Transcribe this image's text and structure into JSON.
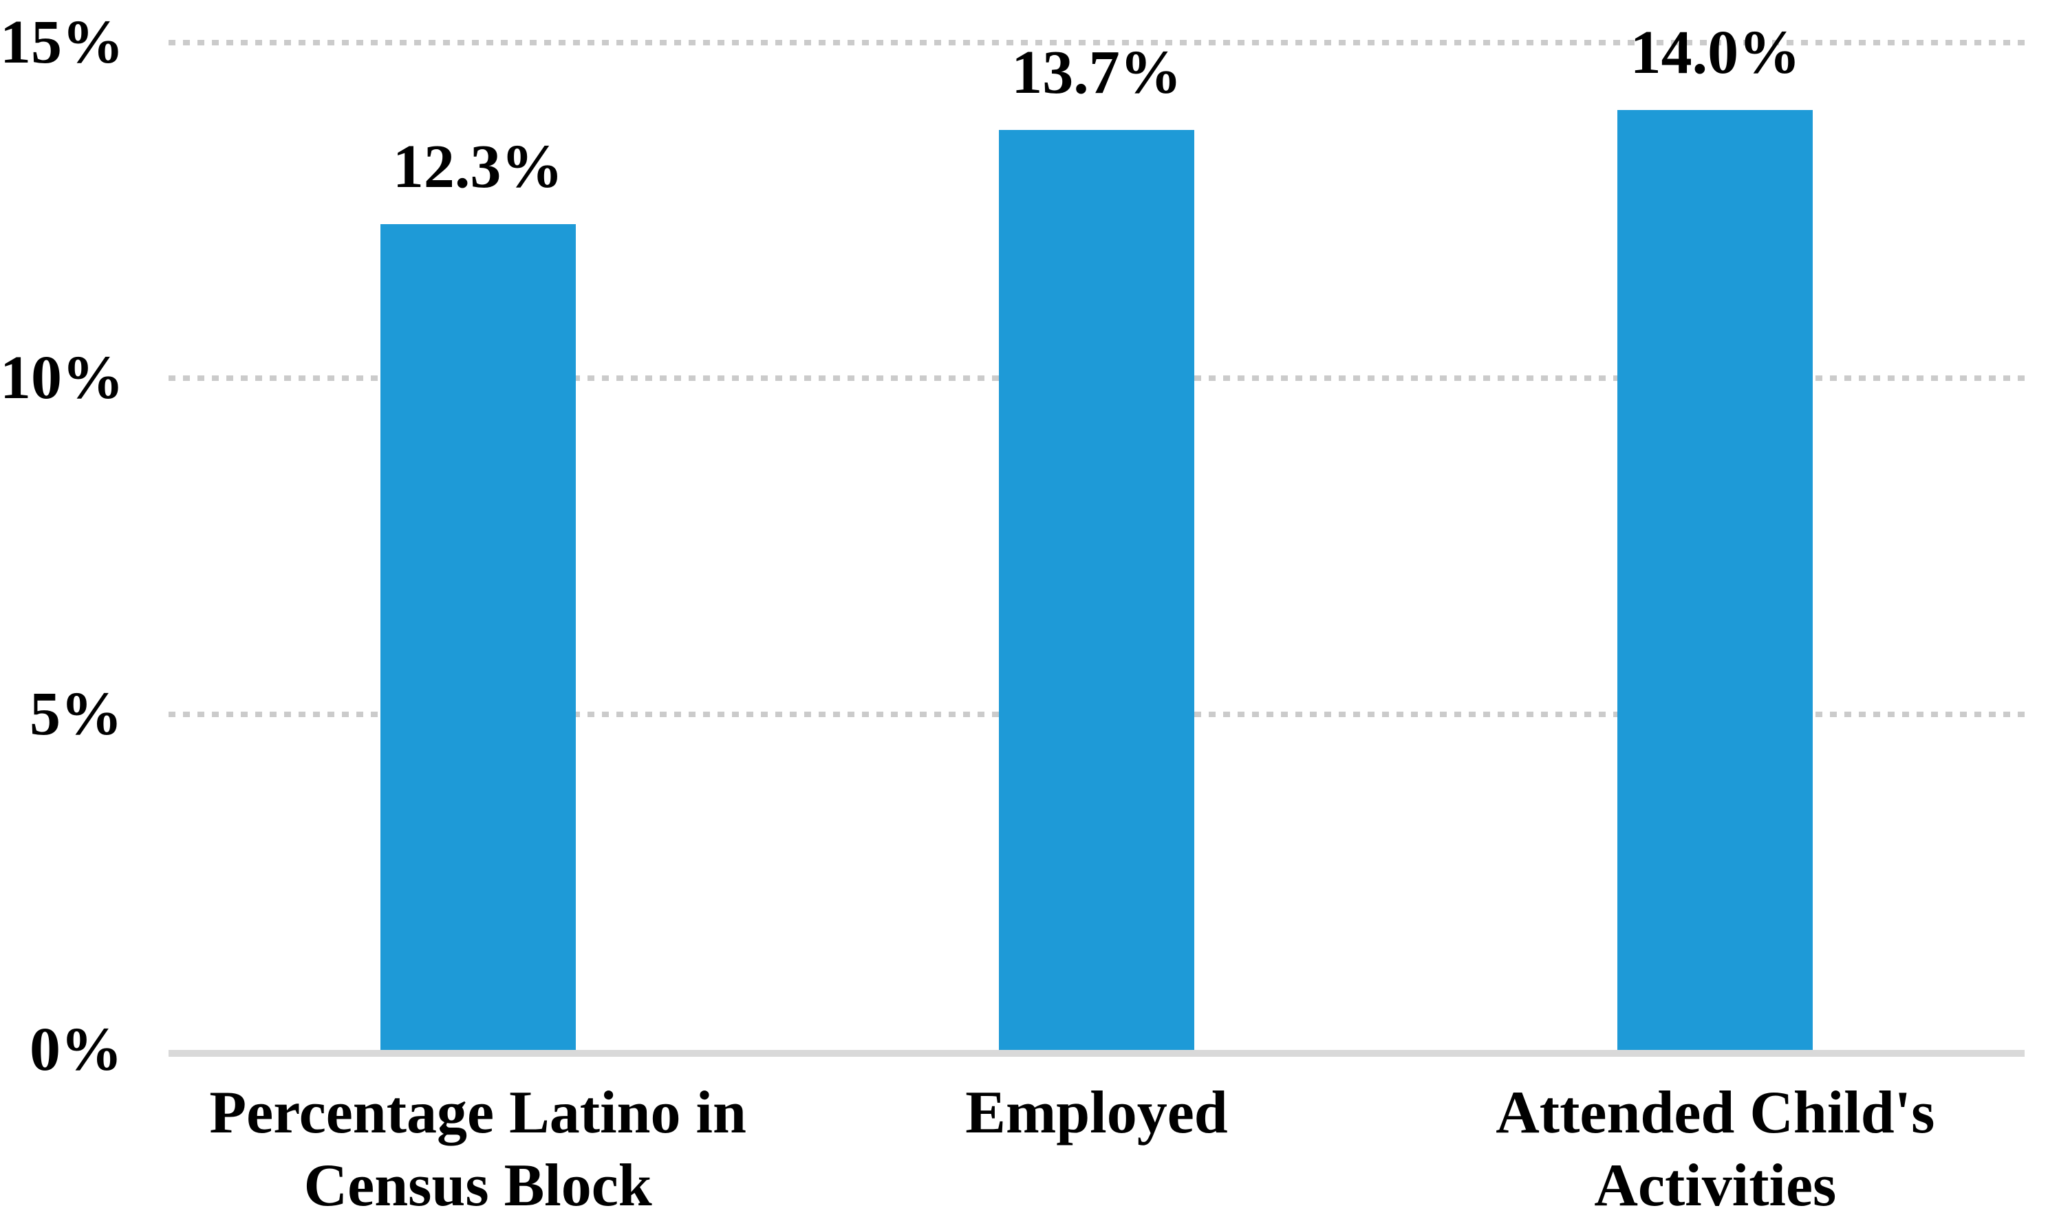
{
  "chart_data": {
    "type": "bar",
    "title": "",
    "categories": [
      "Percentage Latino in\nCensus Block",
      "Employed",
      "Attended Child's\nActivities"
    ],
    "values": [
      12.3,
      13.7,
      14.0
    ],
    "data_labels": [
      "12.3%",
      "13.7%",
      "14.0%"
    ],
    "y_ticks": [
      {
        "value": 15,
        "label": "15%"
      },
      {
        "value": 10,
        "label": "10%"
      },
      {
        "value": 5,
        "label": "5%"
      },
      {
        "value": 0,
        "label": "0%"
      }
    ],
    "gridline_values": [
      15,
      10,
      5
    ],
    "ylim": [
      0,
      15
    ],
    "xlabel": "",
    "ylabel": "",
    "legend": "none",
    "grid": "horizontal-dotted",
    "bar_color": "#1e9ad7",
    "gridline_color": "#cbcbcb",
    "axis_line_color": "#d9d9d9",
    "text_color": "#000000",
    "background_color": "#ffffff"
  }
}
